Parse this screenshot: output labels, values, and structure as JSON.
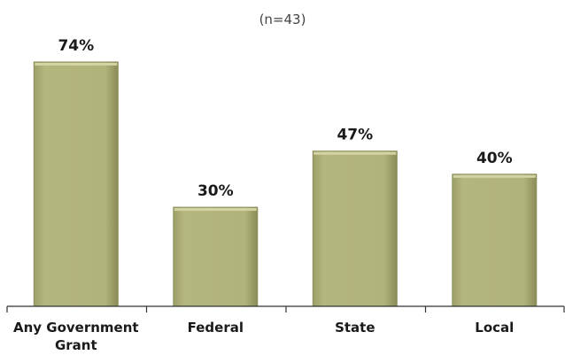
{
  "chart_data": {
    "type": "bar",
    "title": "",
    "subtitle": "(n=43)",
    "categories": [
      "Any Government Grant",
      "Federal",
      "State",
      "Local"
    ],
    "category_lines": [
      [
        "Any Government",
        "Grant"
      ],
      [
        "Federal"
      ],
      [
        "State"
      ],
      [
        "Local"
      ]
    ],
    "values": [
      74,
      30,
      47,
      40
    ],
    "value_labels": [
      "74%",
      "30%",
      "47%",
      "40%"
    ],
    "xlabel": "",
    "ylabel": "",
    "ylim": [
      0,
      74
    ],
    "grid": false,
    "legend": "none",
    "colors": {
      "bar_fill": "#b0b37a",
      "bar_shade": "#8d8f5c",
      "bar_highlight": "#d2d4a4",
      "axis": "#333333"
    }
  }
}
